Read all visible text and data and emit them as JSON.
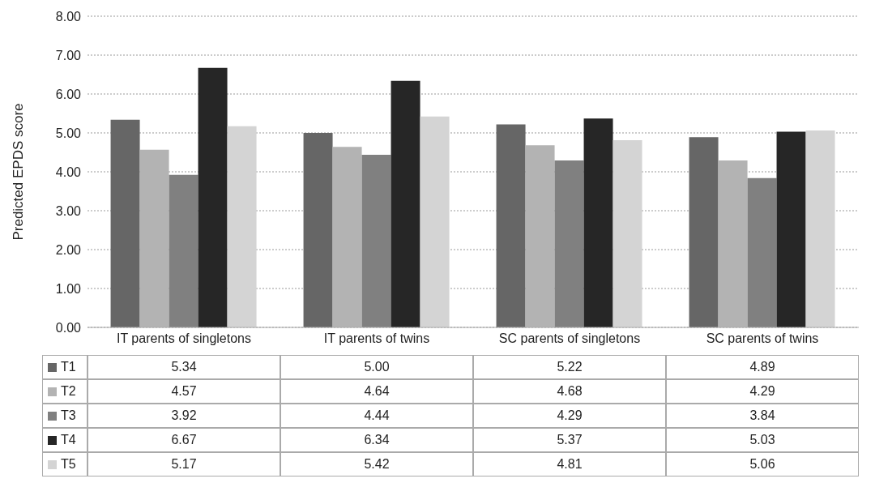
{
  "chart_data": {
    "type": "bar",
    "ylabel": "Predicted EPDS score",
    "categories": [
      "IT parents of singletons",
      "IT parents of twins",
      "SC parents of singletons",
      "SC parents of twins"
    ],
    "series": [
      {
        "name": "T1",
        "color": "#666666",
        "values": [
          5.34,
          5.0,
          5.22,
          4.89
        ],
        "value_labels": [
          "5.34",
          "5.00",
          "5.22",
          "4.89"
        ]
      },
      {
        "name": "T2",
        "color": "#b3b3b3",
        "values": [
          4.57,
          4.64,
          4.68,
          4.29
        ],
        "value_labels": [
          "4.57",
          "4.64",
          "4.68",
          "4.29"
        ]
      },
      {
        "name": "T3",
        "color": "#808080",
        "values": [
          3.92,
          4.44,
          4.29,
          3.84
        ],
        "value_labels": [
          "3.92",
          "4.44",
          "4.29",
          "3.84"
        ]
      },
      {
        "name": "T4",
        "color": "#262626",
        "values": [
          6.67,
          6.34,
          5.37,
          5.03
        ],
        "value_labels": [
          "6.67",
          "6.34",
          "5.37",
          "5.03"
        ]
      },
      {
        "name": "T5",
        "color": "#d4d4d4",
        "values": [
          5.17,
          5.42,
          4.81,
          5.06
        ],
        "value_labels": [
          "5.17",
          "5.42",
          "4.81",
          "5.06"
        ]
      }
    ],
    "ylim": [
      0,
      8
    ],
    "yticks": [
      {
        "value": 0,
        "label": "0.00"
      },
      {
        "value": 1,
        "label": "1.00"
      },
      {
        "value": 2,
        "label": "2.00"
      },
      {
        "value": 3,
        "label": "3.00"
      },
      {
        "value": 4,
        "label": "4.00"
      },
      {
        "value": 5,
        "label": "5.00"
      },
      {
        "value": 6,
        "label": "6.00"
      },
      {
        "value": 7,
        "label": "7.00"
      },
      {
        "value": 8,
        "label": "8.00"
      }
    ],
    "grid": "y",
    "legend": "bottom"
  }
}
